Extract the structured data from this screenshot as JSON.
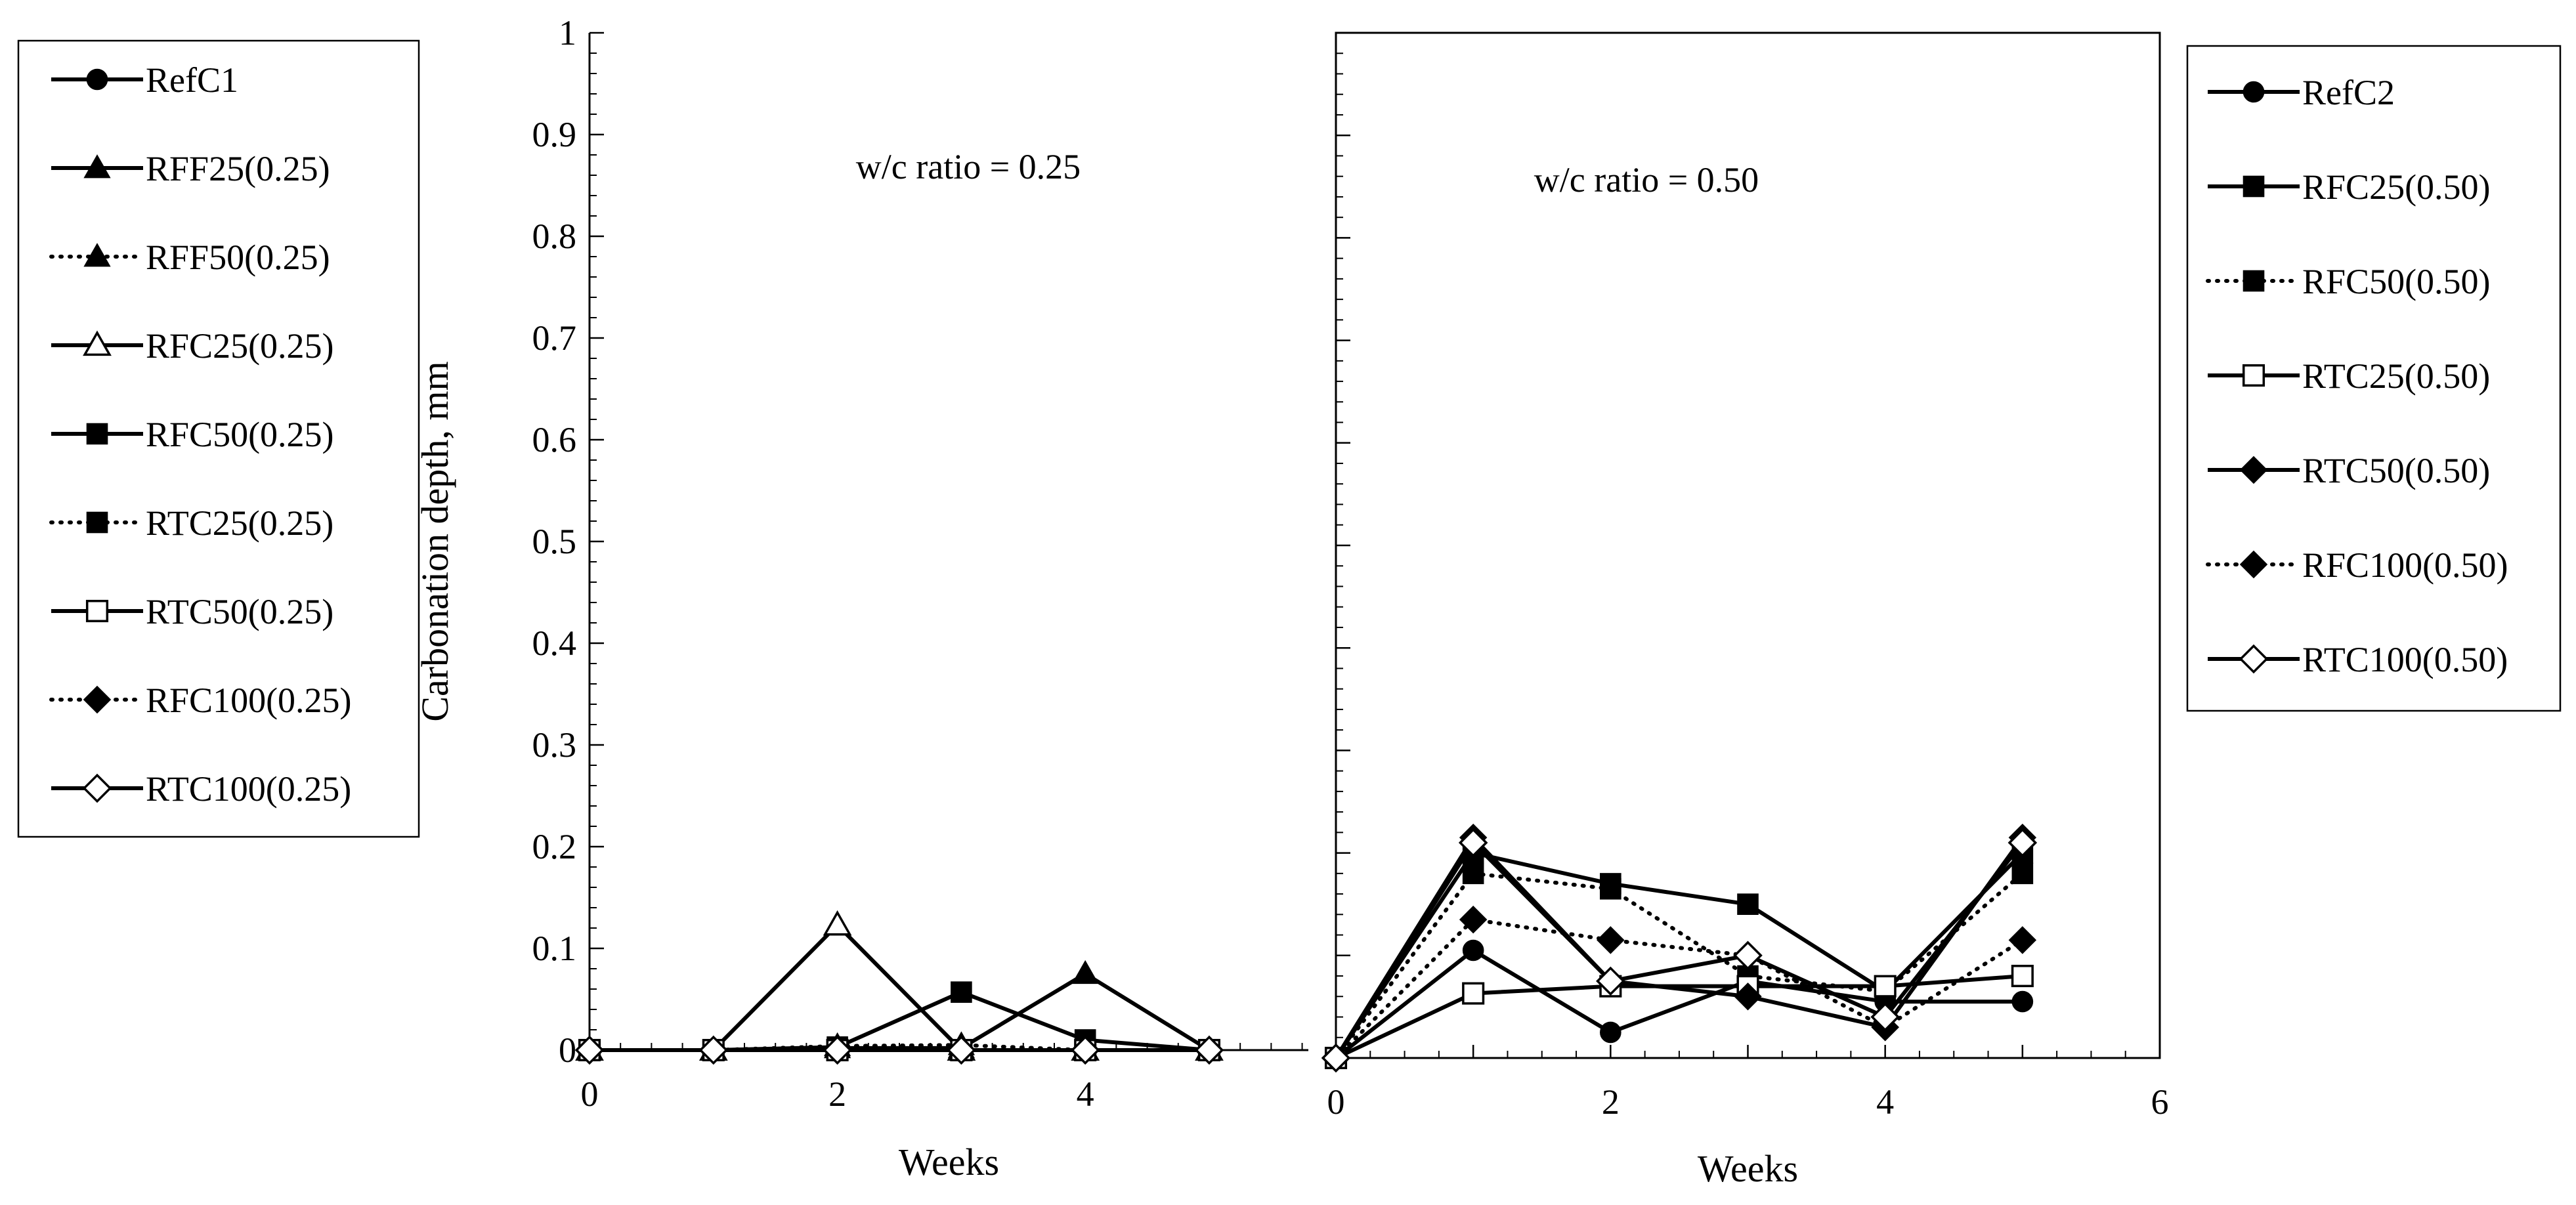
{
  "chart_data": [
    {
      "type": "line",
      "panel": "left",
      "annotation": "w/c ratio = 0.25",
      "xlabel": "Weeks",
      "ylabel": "Carbonation depth, mm",
      "xlim": [
        0,
        5.8
      ],
      "ylim": [
        0,
        1
      ],
      "xticks": [
        "0",
        "2",
        "4"
      ],
      "yticks": [
        "0",
        "0.1",
        "0.2",
        "0.3",
        "0.4",
        "0.5",
        "0.6",
        "0.7",
        "0.8",
        "0.9",
        "1"
      ],
      "legend_position": "left, outside plot",
      "series": [
        {
          "name": "RefC1",
          "marker": "circle",
          "fill": "filled",
          "dash": "solid",
          "x": [
            0,
            1,
            2,
            3,
            4,
            5
          ],
          "values": [
            0,
            0,
            0,
            0,
            0,
            0
          ]
        },
        {
          "name": "RFF25(0.25)",
          "marker": "triangle",
          "fill": "filled",
          "dash": "solid",
          "x": [
            0,
            1,
            2,
            3,
            4,
            5
          ],
          "values": [
            0,
            0,
            0.002,
            0.002,
            0.075,
            0
          ]
        },
        {
          "name": "RFF50(0.25)",
          "marker": "triangle",
          "fill": "filled",
          "dash": "dotted",
          "x": [
            0,
            1,
            2,
            3,
            4,
            5
          ],
          "values": [
            0,
            0,
            0.004,
            0.005,
            0,
            0
          ]
        },
        {
          "name": "RFC25(0.25)",
          "marker": "triangle",
          "fill": "open",
          "dash": "solid",
          "x": [
            0,
            1,
            2,
            3,
            4,
            5
          ],
          "values": [
            0,
            0,
            0.123,
            0,
            0,
            0
          ]
        },
        {
          "name": "RFC50(0.25)",
          "marker": "square",
          "fill": "filled",
          "dash": "solid",
          "x": [
            0,
            1,
            2,
            3,
            4,
            5
          ],
          "values": [
            0,
            0,
            0.003,
            0.057,
            0.01,
            0
          ]
        },
        {
          "name": "RTC25(0.25)",
          "marker": "square",
          "fill": "filled",
          "dash": "dotted",
          "x": [
            0,
            1,
            2,
            3,
            4,
            5
          ],
          "values": [
            0,
            0,
            0,
            0,
            0,
            0
          ]
        },
        {
          "name": "RTC50(0.25)",
          "marker": "square",
          "fill": "open",
          "dash": "solid",
          "x": [
            0,
            1,
            2,
            3,
            4,
            5
          ],
          "values": [
            0,
            0,
            0,
            0,
            0,
            0
          ]
        },
        {
          "name": "RFC100(0.25)",
          "marker": "diamond",
          "fill": "filled",
          "dash": "dotted",
          "x": [
            0,
            1,
            2,
            3,
            4,
            5
          ],
          "values": [
            0,
            0,
            0,
            0,
            0,
            0
          ]
        },
        {
          "name": "RTC100(0.25)",
          "marker": "diamond",
          "fill": "open",
          "dash": "solid",
          "x": [
            0,
            1,
            2,
            3,
            4,
            5
          ],
          "values": [
            0,
            0,
            0,
            0,
            0,
            0
          ]
        }
      ]
    },
    {
      "type": "line",
      "panel": "right",
      "annotation": "w/c ratio = 0.50",
      "xlabel": "Weeks",
      "ylabel": "",
      "xlim": [
        0,
        6
      ],
      "ylim": [
        0,
        1
      ],
      "xticks": [
        "0",
        "2",
        "4",
        "6"
      ],
      "legend_position": "right, outside plot",
      "series": [
        {
          "name": "RefC2",
          "marker": "circle",
          "fill": "filled",
          "dash": "solid",
          "x": [
            0,
            1,
            2,
            3,
            4,
            5
          ],
          "values": [
            0,
            0.105,
            0.025,
            0.075,
            0.055,
            0.055
          ]
        },
        {
          "name": "RFC25(0.50)",
          "marker": "square",
          "fill": "filled",
          "dash": "solid",
          "x": [
            0,
            1,
            2,
            3,
            4,
            5
          ],
          "values": [
            0,
            0.2,
            0.17,
            0.15,
            0.065,
            0.2
          ]
        },
        {
          "name": "RFC50(0.50)",
          "marker": "square",
          "fill": "filled",
          "dash": "dotted",
          "x": [
            0,
            1,
            2,
            3,
            4,
            5
          ],
          "values": [
            0,
            0.18,
            0.165,
            0.08,
            0.065,
            0.18
          ]
        },
        {
          "name": "RTC25(0.50)",
          "marker": "square",
          "fill": "open",
          "dash": "solid",
          "x": [
            0,
            1,
            2,
            3,
            4,
            5
          ],
          "values": [
            0,
            0.063,
            0.07,
            0.07,
            0.07,
            0.08
          ]
        },
        {
          "name": "RTC50(0.50)",
          "marker": "diamond",
          "fill": "filled",
          "dash": "solid",
          "x": [
            0,
            1,
            2,
            3,
            4,
            5
          ],
          "values": [
            0,
            0.215,
            0.075,
            0.06,
            0.03,
            0.215
          ]
        },
        {
          "name": "RFC100(0.50)",
          "marker": "diamond",
          "fill": "filled",
          "dash": "dotted",
          "x": [
            0,
            1,
            2,
            3,
            4,
            5
          ],
          "values": [
            0,
            0.135,
            0.115,
            0.1,
            0.03,
            0.115
          ]
        },
        {
          "name": "RTC100(0.50)",
          "marker": "diamond",
          "fill": "open",
          "dash": "solid",
          "x": [
            0,
            1,
            2,
            3,
            4,
            5
          ],
          "values": [
            0,
            0.21,
            0.075,
            0.1,
            0.04,
            0.21
          ]
        }
      ]
    }
  ]
}
